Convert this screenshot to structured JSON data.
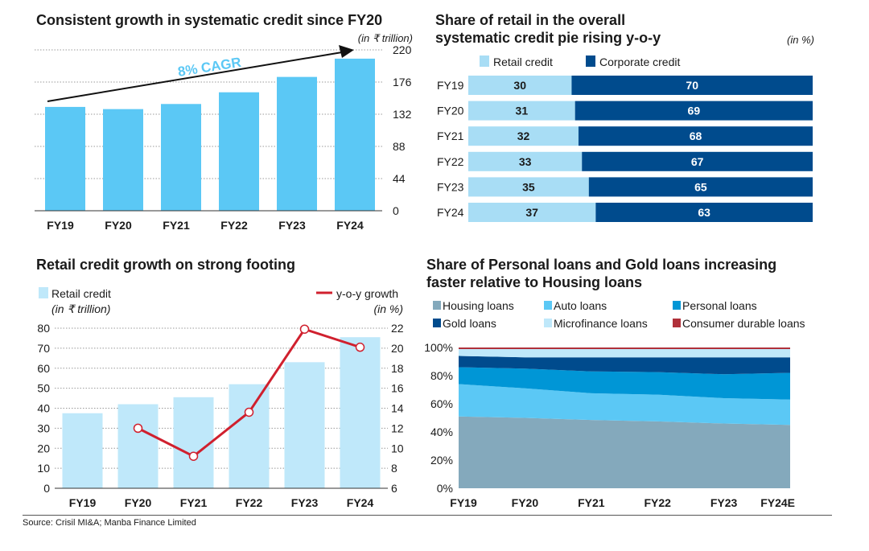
{
  "source": "Source: Crisil MI&A; Manba Finance Limited",
  "colors": {
    "bar1": "#5bc8f5",
    "retail": "#a8ddf5",
    "corporate": "#004b8d",
    "bar3": "#bfe8fa",
    "line": "#d0202e",
    "housing": "#84a9bc",
    "auto": "#5bc8f5",
    "personal": "#0096d6",
    "gold": "#004b8d",
    "micro": "#bfe8fa",
    "durable": "#b0303a"
  },
  "chart_data": [
    {
      "type": "bar",
      "title": "Consistent growth in systematic credit since FY20",
      "unit": "(in ₹ trillion)",
      "annotation": "8% CAGR",
      "categories": [
        "FY19",
        "FY20",
        "FY21",
        "FY22",
        "FY23",
        "FY24"
      ],
      "values": [
        142,
        139,
        146,
        162,
        183,
        208
      ],
      "yticks": [
        0,
        44,
        88,
        132,
        176,
        220
      ],
      "ylim": [
        0,
        220
      ],
      "grid": true,
      "y_axis": "right"
    },
    {
      "type": "bar",
      "orientation": "horizontal",
      "stacked": true,
      "title": "Share of retail in the overall systematic credit pie rising y-o-y",
      "unit": "(in %)",
      "categories": [
        "FY19",
        "FY20",
        "FY21",
        "FY22",
        "FY23",
        "FY24"
      ],
      "series": [
        {
          "name": "Retail credit",
          "values": [
            30,
            31,
            32,
            33,
            35,
            37
          ]
        },
        {
          "name": "Corporate credit",
          "values": [
            70,
            69,
            68,
            67,
            65,
            63
          ]
        }
      ],
      "legend": "top"
    },
    {
      "type": "bar+line",
      "title": "Retail credit growth on strong footing",
      "categories": [
        "FY19",
        "FY20",
        "FY21",
        "FY22",
        "FY23",
        "FY24"
      ],
      "series": [
        {
          "name": "Retail credit",
          "unit": "(in ₹ trillion)",
          "values": [
            37.5,
            42,
            45.5,
            52,
            63,
            75.5
          ]
        },
        {
          "name": "y-o-y growth",
          "unit": "(in %)",
          "values": [
            null,
            12,
            9.2,
            13.6,
            21.9,
            20.1
          ]
        }
      ],
      "yticks_left": [
        0,
        10,
        20,
        30,
        40,
        50,
        60,
        70,
        80
      ],
      "yticks_right": [
        6,
        8,
        10,
        12,
        14,
        16,
        18,
        20,
        22
      ],
      "ylim_left": [
        0,
        80
      ],
      "ylim_right": [
        6,
        22
      ],
      "grid": true
    },
    {
      "type": "area",
      "stacked": true,
      "title": "Share of Personal loans and Gold loans increasing faster relative to Housing loans",
      "categories": [
        "FY19",
        "FY20",
        "FY21",
        "FY22",
        "FY23",
        "FY24E"
      ],
      "series": [
        {
          "name": "Housing loans",
          "values": [
            51,
            50,
            48.5,
            47.5,
            46,
            45
          ]
        },
        {
          "name": "Auto loans",
          "values": [
            23,
            21,
            19,
            19,
            18,
            18
          ]
        },
        {
          "name": "Personal loans",
          "values": [
            12,
            14,
            15.5,
            16,
            17,
            19
          ]
        },
        {
          "name": "Gold loans",
          "values": [
            8,
            8,
            10,
            10.5,
            12,
            11
          ]
        },
        {
          "name": "Microfinance loans",
          "values": [
            5,
            6,
            6,
            6,
            6,
            6
          ]
        },
        {
          "name": "Consumer durable loans",
          "values": [
            1,
            1,
            1,
            1,
            1,
            1
          ]
        }
      ],
      "yticks": [
        "0%",
        "20%",
        "40%",
        "60%",
        "80%",
        "100%"
      ],
      "ylim": [
        0,
        100
      ],
      "legend": "top"
    }
  ]
}
